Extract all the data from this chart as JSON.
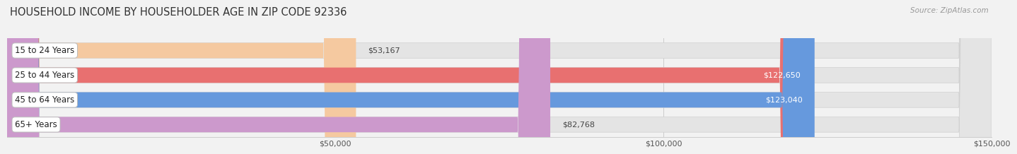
{
  "title": "HOUSEHOLD INCOME BY HOUSEHOLDER AGE IN ZIP CODE 92336",
  "source": "Source: ZipAtlas.com",
  "categories": [
    "15 to 24 Years",
    "25 to 44 Years",
    "45 to 64 Years",
    "65+ Years"
  ],
  "values": [
    53167,
    122650,
    123040,
    82768
  ],
  "bar_colors": [
    "#f5c9a0",
    "#e87070",
    "#6699dd",
    "#cc99cc"
  ],
  "label_colors": [
    "#333333",
    "#333333",
    "#333333",
    "#333333"
  ],
  "value_labels": [
    "$53,167",
    "$122,650",
    "$123,040",
    "$82,768"
  ],
  "value_white": [
    false,
    true,
    true,
    false
  ],
  "xmin": 0,
  "xmax": 150000,
  "xtick_vals": [
    50000,
    100000,
    150000
  ],
  "xtick_labels": [
    "$50,000",
    "$100,000",
    "$150,000"
  ],
  "background_color": "#f2f2f2",
  "bar_bg_color": "#e4e4e4",
  "bar_height": 0.62,
  "bar_gap": 0.08,
  "title_fontsize": 10.5,
  "source_fontsize": 7.5,
  "label_fontsize": 8.5,
  "value_fontsize": 8.0,
  "tick_fontsize": 8.0,
  "rounding_size": 5000
}
